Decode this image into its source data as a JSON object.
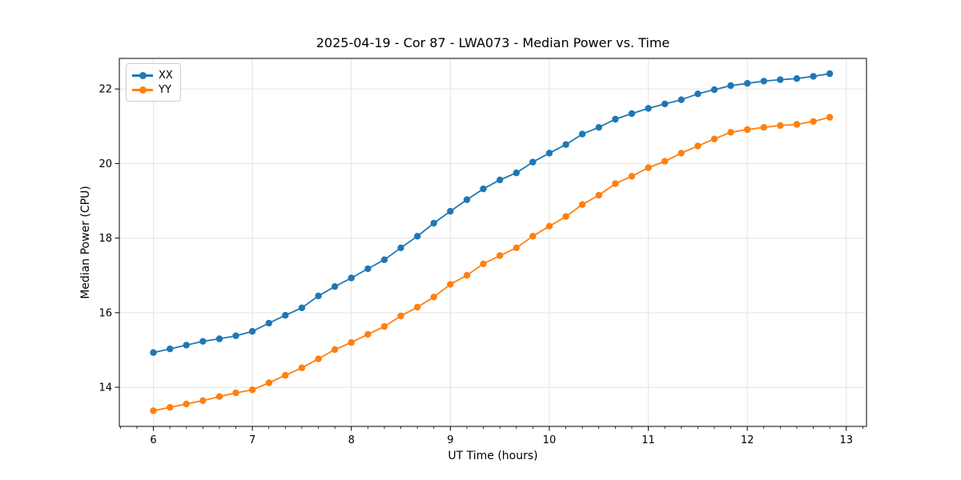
{
  "figure": {
    "title": "2025-04-19 - Cor 87 - LWA073 - Median Power vs. Time",
    "xlabel": "UT Time (hours)",
    "ylabel": "Median Power (CPU)"
  },
  "legend": {
    "items": [
      {
        "label": "XX",
        "color": "#1f77b4"
      },
      {
        "label": "YY",
        "color": "#ff7f0e"
      }
    ]
  },
  "chart_data": {
    "type": "line",
    "title": "2025-04-19 - Cor 87 - LWA073 - Median Power vs. Time",
    "xlabel": "UT Time (hours)",
    "ylabel": "Median Power (CPU)",
    "x": [
      6.0,
      6.167,
      6.333,
      6.5,
      6.667,
      6.833,
      7.0,
      7.167,
      7.333,
      7.5,
      7.667,
      7.833,
      8.0,
      8.167,
      8.333,
      8.5,
      8.667,
      8.833,
      9.0,
      9.167,
      9.333,
      9.5,
      9.667,
      9.833,
      10.0,
      10.167,
      10.333,
      10.5,
      10.667,
      10.833,
      11.0,
      11.167,
      11.333,
      11.5,
      11.667,
      11.833,
      12.0,
      12.167,
      12.333,
      12.5,
      12.667,
      12.833
    ],
    "series": [
      {
        "name": "XX",
        "color": "#1f77b4",
        "values": [
          14.93,
          15.03,
          15.13,
          15.23,
          15.3,
          15.38,
          15.5,
          15.72,
          15.93,
          16.13,
          16.45,
          16.7,
          16.93,
          17.18,
          17.42,
          17.74,
          18.05,
          18.4,
          18.72,
          19.03,
          19.32,
          19.56,
          19.75,
          20.04,
          20.28,
          20.51,
          20.79,
          20.97,
          21.19,
          21.34,
          21.48,
          21.6,
          21.71,
          21.87,
          21.98,
          22.09,
          22.15,
          22.21,
          22.25,
          22.28,
          22.34,
          22.41
        ]
      },
      {
        "name": "YY",
        "color": "#ff7f0e",
        "values": [
          13.37,
          13.46,
          13.55,
          13.64,
          13.75,
          13.85,
          13.93,
          14.12,
          14.32,
          14.52,
          14.76,
          15.01,
          15.2,
          15.42,
          15.63,
          15.91,
          16.15,
          16.42,
          16.76,
          17.0,
          17.31,
          17.53,
          17.74,
          18.05,
          18.32,
          18.58,
          18.9,
          19.15,
          19.46,
          19.66,
          19.89,
          20.06,
          20.28,
          20.47,
          20.66,
          20.84,
          20.91,
          20.97,
          21.02,
          21.05,
          21.13,
          21.24
        ]
      }
    ],
    "xlim": [
      5.656,
      13.204
    ],
    "ylim": [
      12.95,
      22.82
    ],
    "x_ticks": [
      6,
      7,
      8,
      9,
      10,
      11,
      12,
      13
    ],
    "x_minor_step": 0.1666667,
    "y_ticks": [
      14,
      16,
      18,
      20,
      22
    ],
    "grid": true,
    "grid_color": "#e3e3e3",
    "legend_position": "upper left",
    "marker": "circle",
    "background": "#ffffff"
  }
}
